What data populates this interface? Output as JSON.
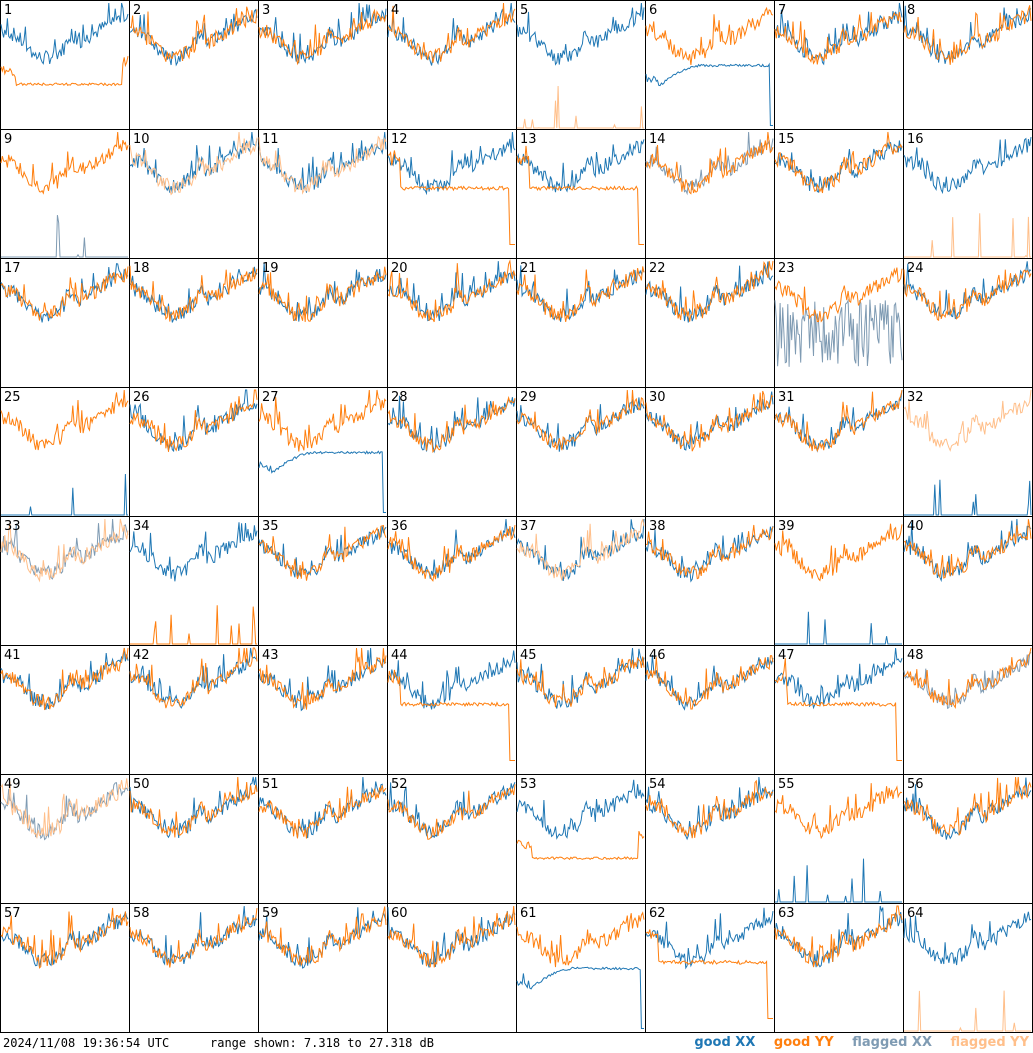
{
  "chart_data": {
    "type": "line",
    "layout": "grid of 64 small spectra panels (8 x 8)",
    "y_range_db": [
      7.318,
      27.318
    ],
    "panels": [
      {
        "n": "1",
        "xx": "good",
        "yy": "good",
        "shape": "yy-bathtub"
      },
      {
        "n": "2",
        "xx": "good",
        "yy": "good",
        "shape": "normal"
      },
      {
        "n": "3",
        "xx": "good",
        "yy": "good",
        "shape": "normal"
      },
      {
        "n": "4",
        "xx": "good",
        "yy": "good",
        "shape": "normal"
      },
      {
        "n": "5",
        "xx": "good",
        "yy": "flagged",
        "shape": "yy-dead"
      },
      {
        "n": "6",
        "xx": "good",
        "yy": "good",
        "shape": "xx-bathtub"
      },
      {
        "n": "7",
        "xx": "good",
        "yy": "good",
        "shape": "normal"
      },
      {
        "n": "8",
        "xx": "good",
        "yy": "good",
        "shape": "normal"
      },
      {
        "n": "9",
        "xx": "flagged",
        "yy": "good",
        "shape": "xx-dead"
      },
      {
        "n": "10",
        "xx": "good",
        "yy": "flagged",
        "shape": "normal"
      },
      {
        "n": "11",
        "xx": "good",
        "yy": "flagged",
        "shape": "normal"
      },
      {
        "n": "12",
        "xx": "good",
        "yy": "good",
        "shape": "yy-flat"
      },
      {
        "n": "13",
        "xx": "good",
        "yy": "good",
        "shape": "yy-flat"
      },
      {
        "n": "14",
        "xx": "flagged",
        "yy": "good",
        "shape": "normal"
      },
      {
        "n": "15",
        "xx": "good",
        "yy": "good",
        "shape": "normal"
      },
      {
        "n": "16",
        "xx": "good",
        "yy": "flagged",
        "shape": "yy-dead"
      },
      {
        "n": "17",
        "xx": "good",
        "yy": "good",
        "shape": "normal"
      },
      {
        "n": "18",
        "xx": "good",
        "yy": "good",
        "shape": "normal"
      },
      {
        "n": "19",
        "xx": "good",
        "yy": "good",
        "shape": "normal"
      },
      {
        "n": "20",
        "xx": "good",
        "yy": "good",
        "shape": "normal"
      },
      {
        "n": "21",
        "xx": "good",
        "yy": "good",
        "shape": "normal"
      },
      {
        "n": "22",
        "xx": "good",
        "yy": "good",
        "shape": "normal"
      },
      {
        "n": "23",
        "xx": "flagged",
        "yy": "good",
        "shape": "xx-noisy"
      },
      {
        "n": "24",
        "xx": "good",
        "yy": "good",
        "shape": "normal"
      },
      {
        "n": "25",
        "xx": "good",
        "yy": "good",
        "shape": "xx-dead"
      },
      {
        "n": "26",
        "xx": "good",
        "yy": "good",
        "shape": "normal"
      },
      {
        "n": "27",
        "xx": "good",
        "yy": "good",
        "shape": "xx-bathtub"
      },
      {
        "n": "28",
        "xx": "good",
        "yy": "good",
        "shape": "normal"
      },
      {
        "n": "29",
        "xx": "good",
        "yy": "good",
        "shape": "normal"
      },
      {
        "n": "30",
        "xx": "good",
        "yy": "good",
        "shape": "normal"
      },
      {
        "n": "31",
        "xx": "good",
        "yy": "good",
        "shape": "normal"
      },
      {
        "n": "32",
        "xx": "good",
        "yy": "flagged",
        "shape": "xx-dead"
      },
      {
        "n": "33",
        "xx": "flagged",
        "yy": "flagged",
        "shape": "normal"
      },
      {
        "n": "34",
        "xx": "good",
        "yy": "good",
        "shape": "yy-dead"
      },
      {
        "n": "35",
        "xx": "good",
        "yy": "good",
        "shape": "normal"
      },
      {
        "n": "36",
        "xx": "good",
        "yy": "good",
        "shape": "normal"
      },
      {
        "n": "37",
        "xx": "good",
        "yy": "flagged",
        "shape": "normal"
      },
      {
        "n": "38",
        "xx": "good",
        "yy": "good",
        "shape": "normal"
      },
      {
        "n": "39",
        "xx": "good",
        "yy": "good",
        "shape": "xx-dead"
      },
      {
        "n": "40",
        "xx": "good",
        "yy": "good",
        "shape": "normal"
      },
      {
        "n": "41",
        "xx": "good",
        "yy": "good",
        "shape": "normal"
      },
      {
        "n": "42",
        "xx": "good",
        "yy": "good",
        "shape": "normal"
      },
      {
        "n": "43",
        "xx": "good",
        "yy": "good",
        "shape": "normal"
      },
      {
        "n": "44",
        "xx": "good",
        "yy": "good",
        "shape": "yy-flat"
      },
      {
        "n": "45",
        "xx": "good",
        "yy": "good",
        "shape": "normal"
      },
      {
        "n": "46",
        "xx": "good",
        "yy": "good",
        "shape": "normal"
      },
      {
        "n": "47",
        "xx": "good",
        "yy": "good",
        "shape": "yy-flat"
      },
      {
        "n": "48",
        "xx": "flagged",
        "yy": "good",
        "shape": "normal"
      },
      {
        "n": "49",
        "xx": "flagged",
        "yy": "flagged",
        "shape": "normal"
      },
      {
        "n": "50",
        "xx": "good",
        "yy": "good",
        "shape": "normal"
      },
      {
        "n": "51",
        "xx": "good",
        "yy": "good",
        "shape": "normal"
      },
      {
        "n": "52",
        "xx": "good",
        "yy": "good",
        "shape": "normal"
      },
      {
        "n": "53",
        "xx": "good",
        "yy": "good",
        "shape": "yy-bathtub"
      },
      {
        "n": "54",
        "xx": "good",
        "yy": "good",
        "shape": "normal"
      },
      {
        "n": "55",
        "xx": "good",
        "yy": "good",
        "shape": "xx-dead"
      },
      {
        "n": "56",
        "xx": "good",
        "yy": "good",
        "shape": "normal"
      },
      {
        "n": "57",
        "xx": "good",
        "yy": "good",
        "shape": "normal"
      },
      {
        "n": "58",
        "xx": "good",
        "yy": "good",
        "shape": "normal"
      },
      {
        "n": "59",
        "xx": "good",
        "yy": "good",
        "shape": "normal"
      },
      {
        "n": "60",
        "xx": "good",
        "yy": "good",
        "shape": "normal"
      },
      {
        "n": "61",
        "xx": "good",
        "yy": "good",
        "shape": "xx-bathtub"
      },
      {
        "n": "62",
        "xx": "good",
        "yy": "good",
        "shape": "yy-flat"
      },
      {
        "n": "63",
        "xx": "good",
        "yy": "good",
        "shape": "normal"
      },
      {
        "n": "64",
        "xx": "good",
        "yy": "flagged",
        "shape": "yy-dead"
      }
    ]
  },
  "footer": {
    "timestamp": "2024/11/08 19:36:54 UTC",
    "range_text": "range shown: 7.318 to 27.318 dB"
  },
  "legend": {
    "good_xx": "good XX",
    "good_yy": "good YY",
    "flagged_xx": "flagged XX",
    "flagged_yy": "flagged YY"
  },
  "colors": {
    "good_xx": "#1f77b4",
    "good_yy": "#ff7f0e",
    "flagged_xx": "#7f9bb3",
    "flagged_yy": "#ffbf8a"
  }
}
